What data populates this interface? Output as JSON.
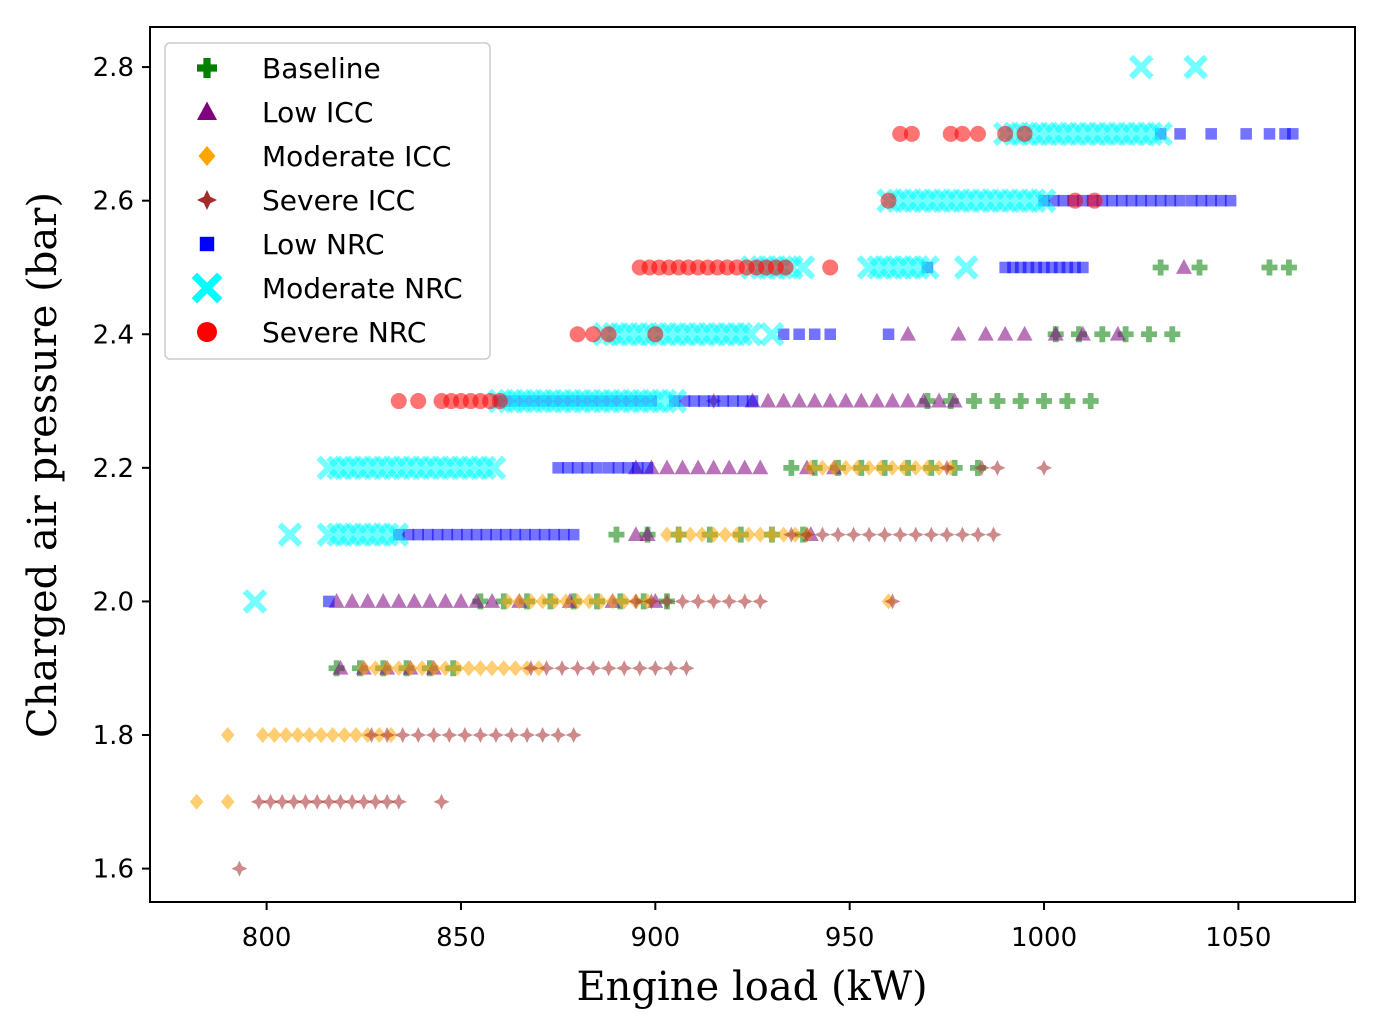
{
  "chart_data": {
    "type": "scatter",
    "xlabel": "Engine load (kW)",
    "ylabel": "Charged air pressure (bar)",
    "xlim": [
      770,
      1080
    ],
    "ylim": [
      1.55,
      2.86
    ],
    "xticks": [
      800,
      850,
      900,
      950,
      1000,
      1050
    ],
    "yticks": [
      1.6,
      1.8,
      2.0,
      2.2,
      2.4,
      2.6,
      2.8
    ],
    "xtick_labels": [
      "800",
      "850",
      "900",
      "950",
      "1000",
      "1050"
    ],
    "ytick_labels": [
      "1.6",
      "1.8",
      "2.0",
      "2.2",
      "2.4",
      "2.6",
      "2.8"
    ],
    "grid": false,
    "legend_position": "top-left",
    "series": [
      {
        "name": "Baseline",
        "marker": "plus",
        "color": "#008000",
        "clusters": [
          {
            "y": 1.9,
            "from": 818,
            "to": 848,
            "step": 6
          },
          {
            "y": 2.0,
            "from": 855,
            "to": 905,
            "step": 6
          },
          {
            "y": 2.1,
            "from": 890,
            "to": 940,
            "step": 8
          },
          {
            "y": 2.2,
            "from": 935,
            "to": 985,
            "step": 6
          },
          {
            "y": 2.3,
            "from": 970,
            "to": 1016,
            "step": 6
          },
          {
            "y": 2.4,
            "from": 1003,
            "to": 1035,
            "step": 6
          },
          {
            "y": 2.5,
            "points": [
              1030,
              1040,
              1058,
              1063
            ]
          }
        ]
      },
      {
        "name": "Low ICC",
        "marker": "triangle",
        "color": "#800080",
        "clusters": [
          {
            "y": 1.9,
            "from": 819,
            "to": 845,
            "step": 6
          },
          {
            "y": 2.0,
            "from": 818,
            "to": 858,
            "step": 4
          },
          {
            "y": 2.0,
            "points": [
              865,
              878,
              889,
              900
            ]
          },
          {
            "y": 2.1,
            "points": [
              895,
              898,
              940
            ]
          },
          {
            "y": 2.2,
            "from": 895,
            "to": 930,
            "step": 4
          },
          {
            "y": 2.2,
            "points": [
              939,
              946
            ]
          },
          {
            "y": 2.3,
            "from": 925,
            "to": 978,
            "step": 4
          },
          {
            "y": 2.4,
            "points": [
              965,
              978,
              985,
              990,
              995,
              1003,
              1010,
              1019
            ]
          },
          {
            "y": 2.5,
            "points": [
              1036
            ]
          }
        ]
      },
      {
        "name": "Moderate ICC",
        "marker": "diamond",
        "color": "#FFA500",
        "clusters": [
          {
            "y": 1.7,
            "points": [
              782,
              790
            ]
          },
          {
            "y": 1.8,
            "points": [
              790
            ]
          },
          {
            "y": 1.8,
            "from": 799,
            "to": 834,
            "step": 3
          },
          {
            "y": 1.9,
            "from": 825,
            "to": 872,
            "step": 3
          },
          {
            "y": 2.0,
            "from": 862,
            "to": 898,
            "step": 3
          },
          {
            "y": 2.0,
            "points": [
              960
            ]
          },
          {
            "y": 2.1,
            "from": 903,
            "to": 940,
            "step": 3
          },
          {
            "y": 2.2,
            "from": 940,
            "to": 978,
            "step": 3
          }
        ]
      },
      {
        "name": "Severe ICC",
        "marker": "star4",
        "color": "#A52A2A",
        "clusters": [
          {
            "y": 1.6,
            "points": [
              793
            ]
          },
          {
            "y": 1.7,
            "from": 798,
            "to": 835,
            "step": 3
          },
          {
            "y": 1.7,
            "points": [
              845
            ]
          },
          {
            "y": 1.8,
            "from": 827,
            "to": 880,
            "step": 4
          },
          {
            "y": 1.9,
            "from": 868,
            "to": 908,
            "step": 4
          },
          {
            "y": 2.0,
            "from": 895,
            "to": 927,
            "step": 4
          },
          {
            "y": 2.0,
            "points": [
              961
            ]
          },
          {
            "y": 2.1,
            "from": 935,
            "to": 990,
            "step": 4
          },
          {
            "y": 2.2,
            "points": [
              975,
              984,
              988,
              1000
            ]
          },
          {
            "y": 2.3,
            "points": [
              915
            ]
          }
        ]
      },
      {
        "name": "Low NRC",
        "marker": "square",
        "color": "#0000FF",
        "clusters": [
          {
            "y": 2.0,
            "points": [
              816
            ]
          },
          {
            "y": 2.1,
            "from": 834,
            "to": 880,
            "step": 2.5
          },
          {
            "y": 2.2,
            "from": 875,
            "to": 885,
            "step": 2.5
          },
          {
            "y": 2.2,
            "from": 888,
            "to": 900,
            "step": 2.5
          },
          {
            "y": 2.3,
            "from": 860,
            "to": 900,
            "step": 3
          },
          {
            "y": 2.3,
            "from": 905,
            "to": 925,
            "step": 2.5
          },
          {
            "y": 2.4,
            "points": [
              933,
              937,
              941,
              945,
              960
            ]
          },
          {
            "y": 2.5,
            "points": [
              970
            ]
          },
          {
            "y": 2.5,
            "from": 990,
            "to": 1010,
            "step": 2
          },
          {
            "y": 2.6,
            "from": 1000,
            "to": 1035,
            "step": 2.5
          },
          {
            "y": 2.6,
            "from": 1038,
            "to": 1048,
            "step": 2.5
          },
          {
            "y": 2.7,
            "points": [
              1030,
              1035,
              1043,
              1052,
              1058,
              1062,
              1064
            ]
          }
        ]
      },
      {
        "name": "Moderate NRC",
        "marker": "x",
        "color": "#00FFFF",
        "clusters": [
          {
            "y": 2.0,
            "points": [
              797
            ]
          },
          {
            "y": 2.1,
            "points": [
              806
            ]
          },
          {
            "y": 2.1,
            "from": 816,
            "to": 835,
            "step": 2.5
          },
          {
            "y": 2.2,
            "from": 816,
            "to": 860,
            "step": 2.5
          },
          {
            "y": 2.3,
            "from": 860,
            "to": 905,
            "step": 2.5
          },
          {
            "y": 2.4,
            "from": 887,
            "to": 925,
            "step": 2.5
          },
          {
            "y": 2.4,
            "points": [
              930
            ]
          },
          {
            "y": 2.5,
            "from": 925,
            "to": 935,
            "step": 2.5
          },
          {
            "y": 2.5,
            "points": [
              938
            ]
          },
          {
            "y": 2.5,
            "from": 955,
            "to": 970,
            "step": 2.5
          },
          {
            "y": 2.5,
            "points": [
              980
            ]
          },
          {
            "y": 2.6,
            "from": 960,
            "to": 1000,
            "step": 2.5
          },
          {
            "y": 2.7,
            "from": 990,
            "to": 1030,
            "step": 2.5
          },
          {
            "y": 2.8,
            "points": [
              1025,
              1039
            ]
          }
        ]
      },
      {
        "name": "Severe NRC",
        "marker": "circle",
        "color": "#FF0000",
        "clusters": [
          {
            "y": 2.3,
            "points": [
              834,
              839
            ]
          },
          {
            "y": 2.3,
            "from": 845,
            "to": 860,
            "step": 2.5
          },
          {
            "y": 2.4,
            "points": [
              880,
              884,
              888,
              900
            ]
          },
          {
            "y": 2.5,
            "from": 896,
            "to": 935,
            "step": 2.5
          },
          {
            "y": 2.5,
            "points": [
              945
            ]
          },
          {
            "y": 2.6,
            "points": [
              960,
              1008,
              1013
            ]
          },
          {
            "y": 2.7,
            "points": [
              963,
              966,
              976,
              979,
              983,
              990,
              995
            ]
          }
        ]
      }
    ]
  }
}
